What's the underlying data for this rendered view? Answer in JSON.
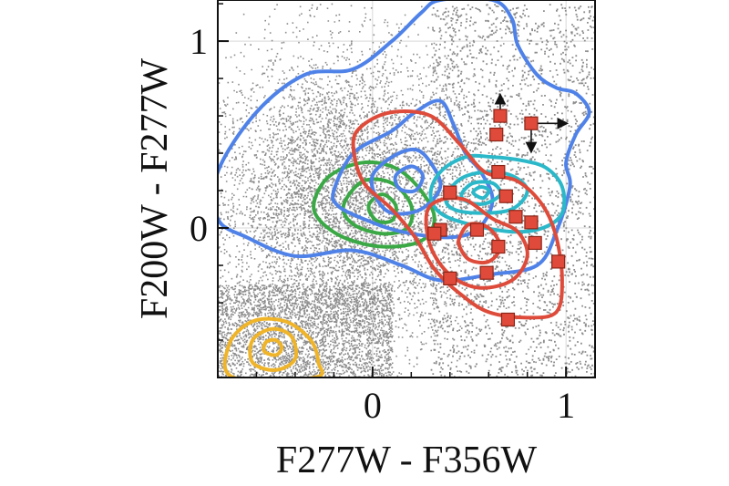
{
  "chart_data": {
    "type": "scatter",
    "title": "",
    "xlabel": "F277W - F356W",
    "ylabel": "F200W - F277W",
    "xlim": [
      -0.8,
      1.15
    ],
    "ylim": [
      -0.8,
      1.22
    ],
    "xticks": [
      0,
      1
    ],
    "yticks": [
      0,
      1
    ],
    "grid": true,
    "legend": "none",
    "background_points": {
      "name": "",
      "color": "#8c8c8c",
      "description_density": "dense cloud centered near (0, 0.1), sparse tail toward upper right"
    },
    "contour_series": [
      {
        "color": "#f0b429",
        "center": [
          -0.52,
          -0.65
        ],
        "levels": [
          [
            [
              -0.72,
              -0.8
            ],
            [
              -0.74,
              -0.62
            ],
            [
              -0.62,
              -0.5
            ],
            [
              -0.45,
              -0.5
            ],
            [
              -0.32,
              -0.6
            ],
            [
              -0.28,
              -0.72
            ],
            [
              -0.3,
              -0.8
            ]
          ],
          [
            [
              -0.62,
              -0.72
            ],
            [
              -0.62,
              -0.6
            ],
            [
              -0.52,
              -0.54
            ],
            [
              -0.42,
              -0.58
            ],
            [
              -0.4,
              -0.7
            ],
            [
              -0.5,
              -0.76
            ]
          ],
          [
            [
              -0.56,
              -0.66
            ],
            [
              -0.55,
              -0.61
            ],
            [
              -0.5,
              -0.6
            ],
            [
              -0.47,
              -0.64
            ],
            [
              -0.5,
              -0.68
            ]
          ]
        ]
      },
      {
        "color": "#3aa845",
        "center": [
          0.05,
          0.08
        ],
        "levels": [
          [
            [
              -0.3,
              0.15
            ],
            [
              -0.22,
              0.28
            ],
            [
              -0.05,
              0.35
            ],
            [
              0.12,
              0.32
            ],
            [
              0.25,
              0.2
            ],
            [
              0.32,
              0.05
            ],
            [
              0.25,
              -0.07
            ],
            [
              0.05,
              -0.1
            ],
            [
              -0.15,
              -0.05
            ],
            [
              -0.28,
              0.05
            ]
          ],
          [
            [
              -0.15,
              0.12
            ],
            [
              -0.05,
              0.25
            ],
            [
              0.1,
              0.24
            ],
            [
              0.2,
              0.12
            ],
            [
              0.18,
              0.0
            ],
            [
              0.05,
              -0.03
            ],
            [
              -0.1,
              0.02
            ]
          ],
          [
            [
              -0.02,
              0.12
            ],
            [
              0.05,
              0.18
            ],
            [
              0.12,
              0.12
            ],
            [
              0.1,
              0.04
            ],
            [
              0.02,
              0.04
            ]
          ]
        ]
      },
      {
        "color": "#4f82e8",
        "center": [
          0.2,
          0.25
        ],
        "levels": [
          [
            [
              -0.8,
              0.3
            ],
            [
              -0.6,
              0.62
            ],
            [
              -0.35,
              0.82
            ],
            [
              -0.1,
              0.85
            ],
            [
              0.1,
              1.0
            ],
            [
              0.25,
              1.15
            ],
            [
              0.35,
              1.22
            ],
            [
              0.62,
              1.22
            ],
            [
              0.72,
              1.12
            ],
            [
              0.75,
              0.98
            ],
            [
              0.85,
              0.82
            ],
            [
              0.95,
              0.75
            ],
            [
              1.05,
              0.72
            ],
            [
              1.12,
              0.62
            ],
            [
              1.05,
              0.5
            ],
            [
              1.0,
              0.35
            ],
            [
              1.02,
              0.22
            ],
            [
              0.95,
              -0.02
            ],
            [
              0.85,
              -0.2
            ],
            [
              0.6,
              -0.25
            ],
            [
              0.35,
              -0.28
            ],
            [
              0.15,
              -0.2
            ],
            [
              -0.1,
              -0.12
            ],
            [
              -0.4,
              -0.15
            ],
            [
              -0.65,
              -0.05
            ],
            [
              -0.8,
              0.05
            ]
          ],
          [
            [
              -0.2,
              0.2
            ],
            [
              -0.1,
              0.4
            ],
            [
              0.1,
              0.52
            ],
            [
              0.22,
              0.62
            ],
            [
              0.35,
              0.68
            ],
            [
              0.42,
              0.55
            ],
            [
              0.48,
              0.4
            ],
            [
              0.56,
              0.3
            ],
            [
              0.62,
              0.15
            ],
            [
              0.55,
              0.0
            ],
            [
              0.4,
              -0.05
            ],
            [
              0.15,
              -0.02
            ],
            [
              -0.05,
              0.05
            ],
            [
              -0.18,
              0.12
            ]
          ],
          [
            [
              0.0,
              0.28
            ],
            [
              0.1,
              0.38
            ],
            [
              0.22,
              0.42
            ],
            [
              0.3,
              0.35
            ],
            [
              0.35,
              0.22
            ],
            [
              0.25,
              0.1
            ],
            [
              0.1,
              0.08
            ],
            [
              0.02,
              0.16
            ]
          ],
          [
            [
              0.12,
              0.28
            ],
            [
              0.2,
              0.33
            ],
            [
              0.26,
              0.28
            ],
            [
              0.22,
              0.2
            ],
            [
              0.14,
              0.21
            ]
          ]
        ]
      },
      {
        "color": "#2bb8c9",
        "center": [
          0.55,
          0.2
        ],
        "levels": [
          [
            [
              0.3,
              0.18
            ],
            [
              0.35,
              0.3
            ],
            [
              0.48,
              0.38
            ],
            [
              0.62,
              0.38
            ],
            [
              0.78,
              0.36
            ],
            [
              0.9,
              0.32
            ],
            [
              0.98,
              0.22
            ],
            [
              0.98,
              0.08
            ],
            [
              0.88,
              0.0
            ],
            [
              0.72,
              -0.02
            ],
            [
              0.5,
              0.02
            ],
            [
              0.35,
              0.08
            ]
          ],
          [
            [
              0.38,
              0.16
            ],
            [
              0.45,
              0.26
            ],
            [
              0.58,
              0.3
            ],
            [
              0.72,
              0.28
            ],
            [
              0.8,
              0.2
            ],
            [
              0.72,
              0.1
            ],
            [
              0.55,
              0.08
            ],
            [
              0.42,
              0.1
            ]
          ],
          [
            [
              0.46,
              0.18
            ],
            [
              0.52,
              0.24
            ],
            [
              0.62,
              0.24
            ],
            [
              0.66,
              0.18
            ],
            [
              0.58,
              0.13
            ],
            [
              0.49,
              0.14
            ]
          ],
          [
            [
              0.52,
              0.19
            ],
            [
              0.56,
              0.22
            ],
            [
              0.6,
              0.2
            ],
            [
              0.57,
              0.16
            ]
          ]
        ]
      },
      {
        "color": "#de4b3a",
        "center": [
          0.55,
          -0.1
        ],
        "levels": [
          [
            [
              -0.1,
              0.45
            ],
            [
              -0.05,
              0.55
            ],
            [
              0.1,
              0.62
            ],
            [
              0.3,
              0.6
            ],
            [
              0.45,
              0.45
            ],
            [
              0.58,
              0.3
            ],
            [
              0.75,
              0.25
            ],
            [
              0.88,
              0.12
            ],
            [
              0.95,
              -0.05
            ],
            [
              0.98,
              -0.28
            ],
            [
              0.95,
              -0.45
            ],
            [
              0.8,
              -0.48
            ],
            [
              0.6,
              -0.45
            ],
            [
              0.45,
              -0.35
            ],
            [
              0.32,
              -0.22
            ],
            [
              0.22,
              -0.05
            ],
            [
              0.1,
              0.1
            ],
            [
              -0.05,
              0.25
            ]
          ],
          [
            [
              0.28,
              0.08
            ],
            [
              0.35,
              0.15
            ],
            [
              0.48,
              0.15
            ],
            [
              0.62,
              0.05
            ],
            [
              0.75,
              -0.02
            ],
            [
              0.8,
              -0.15
            ],
            [
              0.72,
              -0.28
            ],
            [
              0.55,
              -0.32
            ],
            [
              0.4,
              -0.25
            ],
            [
              0.3,
              -0.1
            ]
          ],
          [
            [
              0.45,
              -0.05
            ],
            [
              0.5,
              0.02
            ],
            [
              0.6,
              0.0
            ],
            [
              0.66,
              -0.1
            ],
            [
              0.6,
              -0.18
            ],
            [
              0.5,
              -0.17
            ],
            [
              0.45,
              -0.1
            ]
          ]
        ]
      }
    ],
    "highlight_points": {
      "name": "",
      "color": "#e04a3a",
      "marker": "square",
      "points": [
        [
          0.66,
          0.6
        ],
        [
          0.64,
          0.5
        ],
        [
          0.82,
          0.56
        ],
        [
          0.65,
          0.3
        ],
        [
          0.4,
          0.19
        ],
        [
          0.69,
          0.17
        ],
        [
          0.35,
          -0.01
        ],
        [
          0.54,
          -0.01
        ],
        [
          0.74,
          0.06
        ],
        [
          0.82,
          0.03
        ],
        [
          0.32,
          -0.03
        ],
        [
          0.65,
          -0.1
        ],
        [
          0.84,
          -0.08
        ],
        [
          0.96,
          -0.18
        ],
        [
          0.4,
          -0.27
        ],
        [
          0.59,
          -0.24
        ],
        [
          0.7,
          -0.49
        ]
      ],
      "limits": [
        {
          "point": [
            0.66,
            0.6
          ],
          "direction": "up"
        },
        {
          "point": [
            0.82,
            0.56
          ],
          "direction": "right"
        },
        {
          "point": [
            0.82,
            0.56
          ],
          "direction": "down"
        }
      ]
    }
  }
}
